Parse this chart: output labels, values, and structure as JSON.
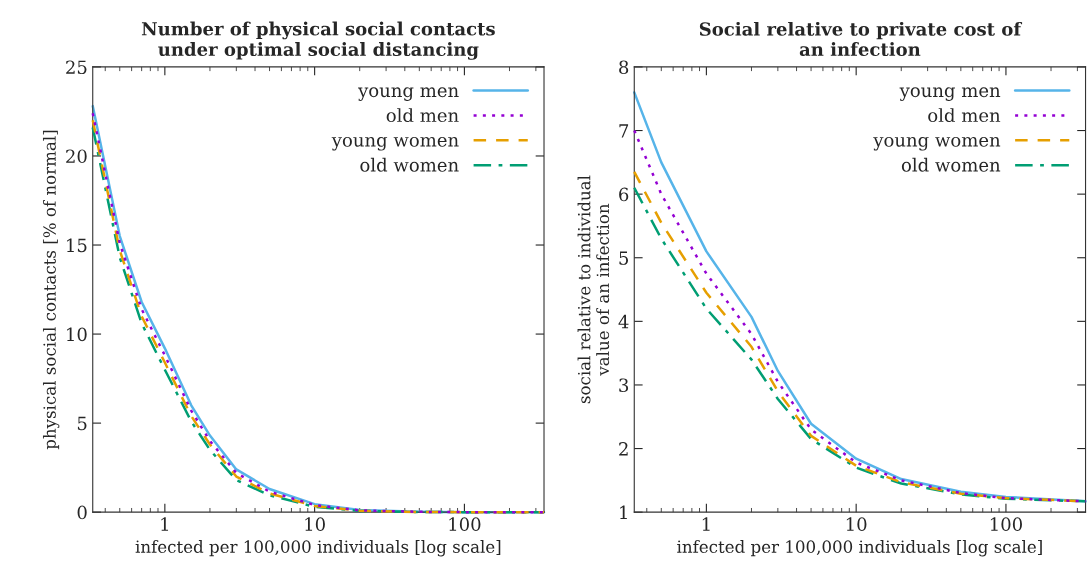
{
  "chart_data": [
    {
      "type": "line",
      "title": "Number of physical social contacts\nunder optimal social distancing",
      "xlabel": "infected per 100,000 individuals [log scale]",
      "ylabel": "physical social contacts [% of normal]",
      "log": "x",
      "xlim": [
        0.33,
        340
      ],
      "xticks": [
        1,
        10,
        100
      ],
      "ylim": [
        0,
        25
      ],
      "yticks": [
        0,
        5,
        10,
        15,
        20,
        25
      ],
      "grid": false,
      "legend": "top right",
      "x": [
        0.33,
        0.5,
        0.7,
        1,
        1.5,
        2,
        3,
        5,
        10,
        20,
        50,
        100,
        340
      ],
      "series": [
        {
          "name": "young men",
          "color": "#56b4e9",
          "line_style": "solid",
          "values": [
            22.8,
            15.5,
            11.8,
            9.2,
            6.0,
            4.3,
            2.4,
            1.3,
            0.45,
            0.12,
            0.02,
            0,
            0
          ]
        },
        {
          "name": "old men",
          "color": "#9400d3",
          "line_style": "dotted",
          "values": [
            22.4,
            15.1,
            11.4,
            8.8,
            5.7,
            4.0,
            2.2,
            1.15,
            0.4,
            0.1,
            0.02,
            0,
            0
          ]
        },
        {
          "name": "young women",
          "color": "#e69f00",
          "line_style": "dashed",
          "values": [
            22.0,
            14.7,
            11.0,
            8.4,
            5.4,
            3.8,
            2.0,
            1.05,
            0.35,
            0.08,
            0.01,
            0,
            0
          ]
        },
        {
          "name": "old women",
          "color": "#009e73",
          "line_style": "dashdot",
          "values": [
            21.6,
            14.3,
            10.6,
            8.0,
            5.1,
            3.5,
            1.8,
            0.95,
            0.3,
            0.07,
            0.01,
            0,
            0
          ]
        }
      ]
    },
    {
      "type": "line",
      "title": "Social relative to private cost of\nan infection",
      "xlabel": "infected per 100,000 individuals [log scale]",
      "ylabel": "social relative to individual\nvalue of an infection",
      "log": "x",
      "xlim": [
        0.33,
        340
      ],
      "xticks": [
        1,
        10,
        100
      ],
      "ylim": [
        1,
        8
      ],
      "yticks": [
        1,
        2,
        3,
        4,
        5,
        6,
        7,
        8
      ],
      "grid": false,
      "legend": "top right",
      "x": [
        0.33,
        0.5,
        1,
        2,
        3,
        5,
        10,
        20,
        50,
        100,
        340
      ],
      "series": [
        {
          "name": "young men",
          "color": "#56b4e9",
          "line_style": "solid",
          "values": [
            7.6,
            6.5,
            5.1,
            4.07,
            3.22,
            2.39,
            1.84,
            1.52,
            1.32,
            1.24,
            1.17
          ]
        },
        {
          "name": "old men",
          "color": "#9400d3",
          "line_style": "dotted",
          "values": [
            7.0,
            6.0,
            4.75,
            3.8,
            3.05,
            2.3,
            1.78,
            1.5,
            1.3,
            1.22,
            1.17
          ]
        },
        {
          "name": "young women",
          "color": "#e69f00",
          "line_style": "dashed",
          "values": [
            6.35,
            5.55,
            4.45,
            3.6,
            2.9,
            2.2,
            1.73,
            1.47,
            1.29,
            1.22,
            1.17
          ]
        },
        {
          "name": "old women",
          "color": "#009e73",
          "line_style": "dashdot",
          "values": [
            6.1,
            5.3,
            4.2,
            3.4,
            2.78,
            2.15,
            1.7,
            1.45,
            1.28,
            1.21,
            1.17
          ]
        }
      ]
    }
  ]
}
